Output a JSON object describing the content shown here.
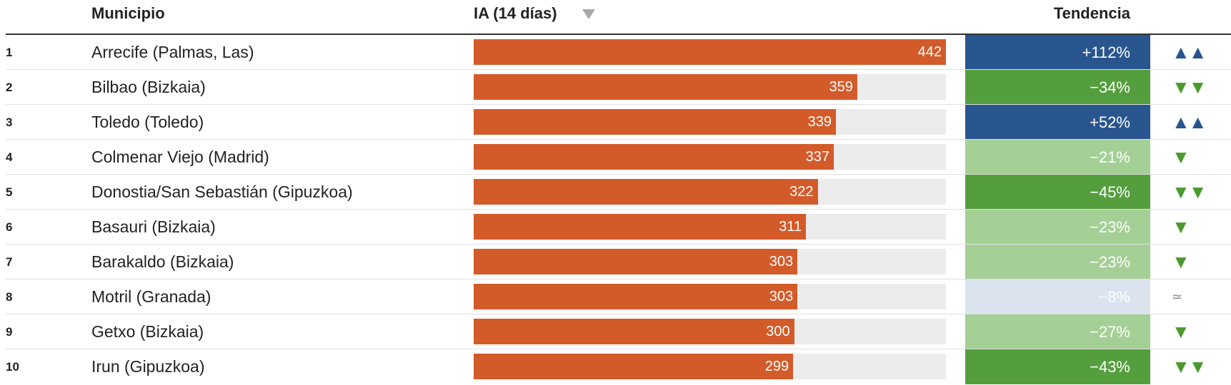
{
  "header": {
    "columns": [
      "Municipio",
      "IA (14 días)",
      "Tendencia"
    ]
  },
  "table": {
    "bar_color": "#d35b2a",
    "bar_track_color": "#ececec",
    "rows": [
      {
        "rank": 1,
        "municipio": "Arrecife (Palmas, Las)",
        "ia": 442,
        "tendencia": "+112%",
        "color": "#29558f",
        "icon": "▲▲",
        "icon_color": "#29558f"
      },
      {
        "rank": 2,
        "municipio": "Bilbao (Bizkaia)",
        "ia": 359,
        "tendencia": "−34%",
        "color": "#549e3d",
        "icon": "▼▼",
        "icon_color": "#4a9a2e"
      },
      {
        "rank": 3,
        "municipio": "Toledo (Toledo)",
        "ia": 339,
        "tendencia": "+52%",
        "color": "#29558f",
        "icon": "▲▲",
        "icon_color": "#29558f"
      },
      {
        "rank": 4,
        "municipio": "Colmenar Viejo (Madrid)",
        "ia": 337,
        "tendencia": "−21%",
        "color": "#a4cf95",
        "icon": "▼",
        "icon_color": "#4a9a2e"
      },
      {
        "rank": 5,
        "municipio": "Donostia/San Sebastián (Gipuzkoa)",
        "ia": 322,
        "tendencia": "−45%",
        "color": "#549e3d",
        "icon": "▼▼",
        "icon_color": "#4a9a2e"
      },
      {
        "rank": 6,
        "municipio": "Basauri (Bizkaia)",
        "ia": 311,
        "tendencia": "−23%",
        "color": "#a4cf95",
        "icon": "▼",
        "icon_color": "#4a9a2e"
      },
      {
        "rank": 7,
        "municipio": "Barakaldo (Bizkaia)",
        "ia": 303,
        "tendencia": "−23%",
        "color": "#a4cf95",
        "icon": "▼",
        "icon_color": "#4a9a2e"
      },
      {
        "rank": 8,
        "municipio": "Motril (Granada)",
        "ia": 303,
        "tendencia": "−8%",
        "color": "#dbe4ee",
        "icon": "≃",
        "icon_color": "#888888"
      },
      {
        "rank": 9,
        "municipio": "Getxo (Bizkaia)",
        "ia": 300,
        "tendencia": "−27%",
        "color": "#a4cf95",
        "icon": "▼",
        "icon_color": "#4a9a2e"
      },
      {
        "rank": 10,
        "municipio": "Irun (Gipuzkoa)",
        "ia": 299,
        "tendencia": "−43%",
        "color": "#549e3d",
        "icon": "▼▼",
        "icon_color": "#4a9a2e"
      }
    ]
  }
}
